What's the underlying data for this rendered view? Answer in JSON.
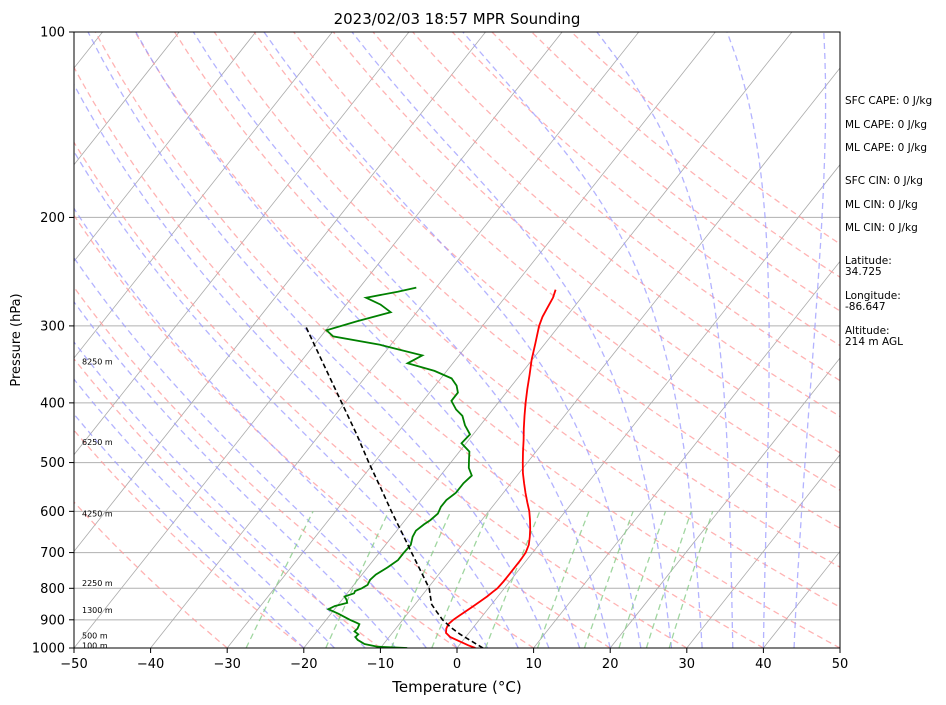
{
  "chart_data": {
    "type": "line",
    "title": "2023/02/03 18:57 MPR Sounding",
    "xlabel": "Temperature (°C)",
    "ylabel": "Pressure (hPa)",
    "xlim": [
      -50,
      50
    ],
    "ylim": [
      1000,
      100
    ],
    "yscale": "log",
    "skew": "skew-T log-p",
    "grid": true,
    "x_ticks": [
      "−50",
      "−40",
      "−30",
      "−20",
      "−10",
      "0",
      "10",
      "20",
      "30",
      "40",
      "50"
    ],
    "y_ticks": [
      "100",
      "200",
      "300",
      "400",
      "500",
      "600",
      "700",
      "800",
      "900",
      "1000"
    ],
    "altitude_labels": [
      {
        "p": 990,
        "label": "100 m"
      },
      {
        "p": 955,
        "label": "500 m"
      },
      {
        "p": 868,
        "label": "1300 m"
      },
      {
        "p": 785,
        "label": "2250 m"
      },
      {
        "p": 605,
        "label": "4250 m"
      },
      {
        "p": 463,
        "label": "6250 m"
      },
      {
        "p": 343,
        "label": "8250 m"
      }
    ],
    "series": [
      {
        "role": "temperature",
        "color": "#ff0000",
        "points": [
          [
            1000,
            2.4
          ],
          [
            990,
            1.2
          ],
          [
            975,
            -0.4
          ],
          [
            960,
            -2.0
          ],
          [
            945,
            -3.0
          ],
          [
            930,
            -3.4
          ],
          [
            915,
            -3.6
          ],
          [
            900,
            -3.4
          ],
          [
            885,
            -3.0
          ],
          [
            870,
            -2.6
          ],
          [
            855,
            -2.2
          ],
          [
            840,
            -1.8
          ],
          [
            825,
            -1.4
          ],
          [
            810,
            -1.1
          ],
          [
            800,
            -0.9
          ],
          [
            780,
            -0.8
          ],
          [
            760,
            -0.8
          ],
          [
            740,
            -0.8
          ],
          [
            720,
            -0.8
          ],
          [
            700,
            -0.9
          ],
          [
            680,
            -1.3
          ],
          [
            660,
            -2.0
          ],
          [
            640,
            -2.8
          ],
          [
            620,
            -3.7
          ],
          [
            600,
            -4.7
          ],
          [
            580,
            -5.9
          ],
          [
            560,
            -7.1
          ],
          [
            540,
            -8.3
          ],
          [
            520,
            -9.5
          ],
          [
            500,
            -10.6
          ],
          [
            480,
            -11.7
          ],
          [
            460,
            -12.8
          ],
          [
            440,
            -14.0
          ],
          [
            420,
            -15.2
          ],
          [
            400,
            -16.4
          ],
          [
            380,
            -17.6
          ],
          [
            360,
            -18.8
          ],
          [
            340,
            -20.1
          ],
          [
            320,
            -21.3
          ],
          [
            300,
            -22.6
          ],
          [
            290,
            -23.1
          ],
          [
            280,
            -23.4
          ],
          [
            270,
            -23.7
          ],
          [
            262,
            -24.2
          ]
        ]
      },
      {
        "role": "dewpoint",
        "color": "#008000",
        "points": [
          [
            1000,
            -6.5
          ],
          [
            995,
            -10.5
          ],
          [
            985,
            -12.5
          ],
          [
            970,
            -13.8
          ],
          [
            960,
            -14.4
          ],
          [
            950,
            -14.3
          ],
          [
            940,
            -15.1
          ],
          [
            930,
            -15.0
          ],
          [
            915,
            -15.2
          ],
          [
            910,
            -15.7
          ],
          [
            900,
            -16.9
          ],
          [
            880,
            -19.0
          ],
          [
            865,
            -20.8
          ],
          [
            855,
            -20.3
          ],
          [
            845,
            -19.0
          ],
          [
            835,
            -19.4
          ],
          [
            825,
            -20.0
          ],
          [
            815,
            -19.1
          ],
          [
            808,
            -19.2
          ],
          [
            800,
            -18.6
          ],
          [
            790,
            -18.2
          ],
          [
            775,
            -18.4
          ],
          [
            760,
            -18.2
          ],
          [
            740,
            -17.4
          ],
          [
            720,
            -16.8
          ],
          [
            700,
            -16.8
          ],
          [
            680,
            -16.7
          ],
          [
            660,
            -17.3
          ],
          [
            645,
            -17.5
          ],
          [
            630,
            -17.1
          ],
          [
            620,
            -16.7
          ],
          [
            605,
            -16.4
          ],
          [
            590,
            -16.7
          ],
          [
            575,
            -16.7
          ],
          [
            560,
            -16.2
          ],
          [
            540,
            -16.2
          ],
          [
            525,
            -15.9
          ],
          [
            510,
            -17.1
          ],
          [
            495,
            -17.9
          ],
          [
            480,
            -18.7
          ],
          [
            465,
            -20.6
          ],
          [
            450,
            -20.4
          ],
          [
            435,
            -22.0
          ],
          [
            420,
            -23.3
          ],
          [
            410,
            -24.8
          ],
          [
            397,
            -26.3
          ],
          [
            385,
            -26.3
          ],
          [
            375,
            -27.2
          ],
          [
            365,
            -28.6
          ],
          [
            355,
            -31.6
          ],
          [
            345,
            -35.9
          ],
          [
            335,
            -34.8
          ],
          [
            322,
            -41.4
          ],
          [
            312,
            -48.4
          ],
          [
            305,
            -49.9
          ],
          [
            295,
            -46.9
          ],
          [
            285,
            -43.4
          ],
          [
            277,
            -45.5
          ],
          [
            270,
            -48.1
          ],
          [
            264,
            -44.6
          ],
          [
            260,
            -42.6
          ]
        ]
      },
      {
        "role": "parcel",
        "color": "#000000",
        "style": "dashed",
        "points": [
          [
            1000,
            3.4
          ],
          [
            975,
            1.2
          ],
          [
            950,
            -1.0
          ],
          [
            925,
            -3.0
          ],
          [
            900,
            -4.8
          ],
          [
            875,
            -6.3
          ],
          [
            850,
            -7.8
          ],
          [
            825,
            -8.8
          ],
          [
            800,
            -9.8
          ],
          [
            750,
            -12.7
          ],
          [
            700,
            -15.8
          ],
          [
            650,
            -19.1
          ],
          [
            600,
            -22.7
          ],
          [
            550,
            -26.5
          ],
          [
            500,
            -30.7
          ],
          [
            450,
            -35.2
          ],
          [
            400,
            -40.4
          ],
          [
            350,
            -46.3
          ],
          [
            300,
            -53.1
          ]
        ]
      }
    ],
    "reference_lines": {
      "dry_adiabat_color": "#ff9999",
      "moist_adiabat_color": "#9999ff",
      "mixing_ratio_color": "#88cc88",
      "isotherm_color": "#aaaaaa"
    }
  },
  "info": {
    "sfc_cape": "SFC CAPE: 0 J/kg",
    "ml_cape_1": "ML CAPE: 0 J/kg",
    "ml_cape_2": "ML CAPE: 0 J/kg",
    "sfc_cin": "SFC CIN: 0 J/kg",
    "ml_cin_1": "ML CIN: 0 J/kg",
    "ml_cin_2": "ML CIN: 0 J/kg",
    "latitude_label": "Latitude:",
    "latitude_value": "34.725",
    "longitude_label": "Longitude:",
    "longitude_value": "-86.647",
    "altitude_label": "Altitude:",
    "altitude_value": "214 m AGL"
  }
}
